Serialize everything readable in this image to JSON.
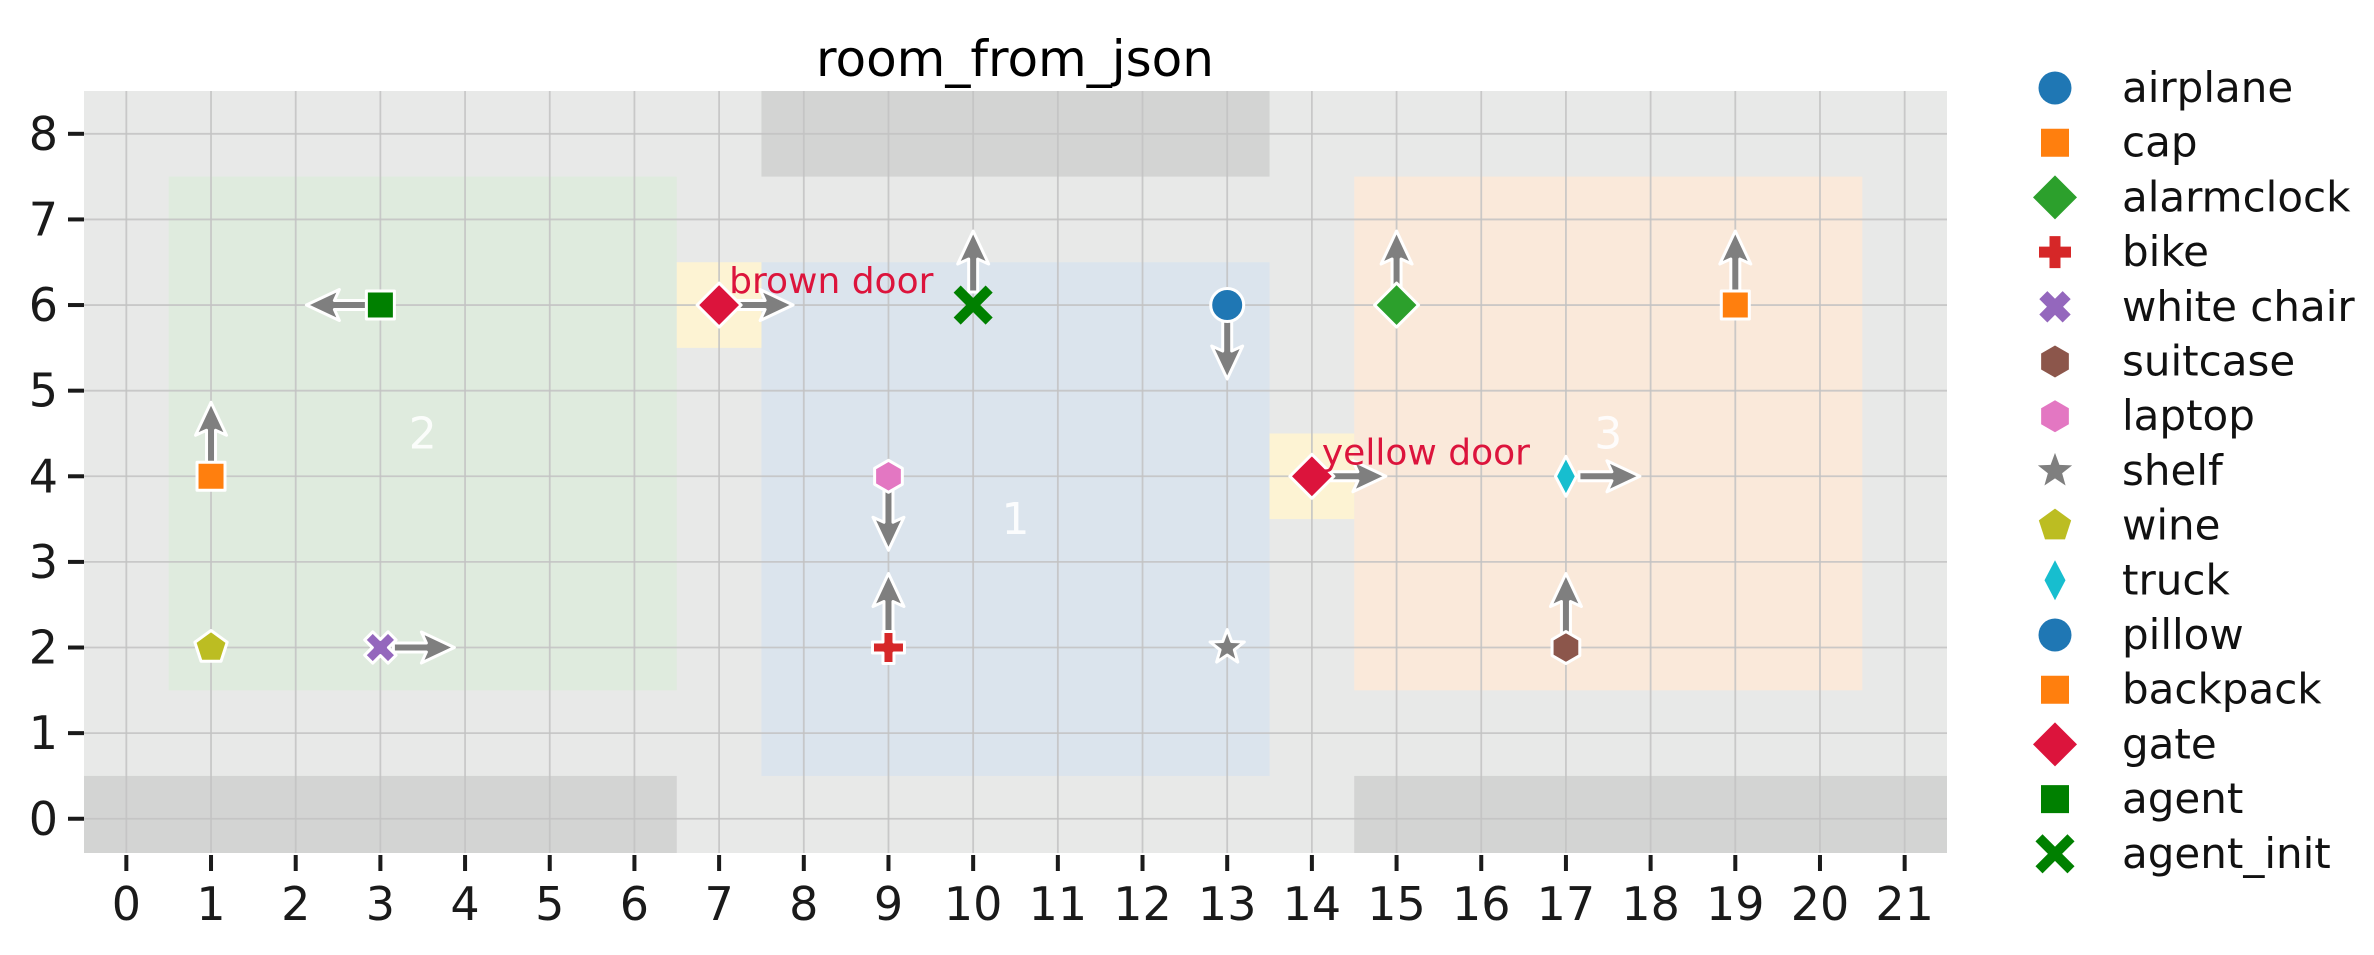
{
  "figure": {
    "title": "room_from_json"
  },
  "chart_data": {
    "type": "scatter",
    "title": "room_from_json",
    "xlim": [
      -0.5,
      21.5
    ],
    "ylim": [
      -0.4,
      8.5
    ],
    "xticks": [
      0,
      1,
      2,
      3,
      4,
      5,
      6,
      7,
      8,
      9,
      10,
      11,
      12,
      13,
      14,
      15,
      16,
      17,
      18,
      19,
      20,
      21
    ],
    "yticks": [
      0,
      1,
      2,
      3,
      4,
      5,
      6,
      7,
      8
    ],
    "grid": true,
    "legend_position": "right-outside",
    "colors": {
      "plot_bg": "#e8e9e8",
      "wall": "#d3d4d3",
      "grid": "#c3c3c3",
      "door_fill": "#fdf3d3",
      "door_text": "#dc143c",
      "room_label": "#ffffff",
      "arrow": "#7f7f7f",
      "tick": "#1a1a1a"
    },
    "rooms": [
      {
        "id": "2",
        "label": "2",
        "x": [
          0.5,
          6.5
        ],
        "y": [
          1.5,
          7.5
        ],
        "fill": "#dfebde",
        "label_x": 3.5,
        "label_y": 4.5
      },
      {
        "id": "1",
        "label": "1",
        "x": [
          7.5,
          13.5
        ],
        "y": [
          0.5,
          6.5
        ],
        "fill": "#dbe4ed",
        "label_x": 10.5,
        "label_y": 3.5
      },
      {
        "id": "3",
        "label": "3",
        "x": [
          14.5,
          20.5
        ],
        "y": [
          1.5,
          7.5
        ],
        "fill": "#fae9da",
        "label_x": 17.5,
        "label_y": 4.5
      }
    ],
    "walls": [
      {
        "x": [
          -0.5,
          6.5
        ],
        "y": [
          -0.4,
          0.5
        ]
      },
      {
        "x": [
          14.5,
          21.5
        ],
        "y": [
          -0.4,
          0.5
        ]
      },
      {
        "x": [
          7.5,
          13.5
        ],
        "y": [
          7.5,
          8.5
        ]
      }
    ],
    "doors": [
      {
        "label": "brown door",
        "x": 7,
        "y": 6,
        "rect_x": [
          6.5,
          7.5
        ],
        "rect_y": [
          5.5,
          6.5
        ]
      },
      {
        "label": "yellow door",
        "x": 14,
        "y": 4,
        "rect_x": [
          13.5,
          14.5
        ],
        "rect_y": [
          3.5,
          4.5
        ]
      }
    ],
    "objects": [
      {
        "label": "cap",
        "marker": "square",
        "color": "#ff7f0e",
        "x": 1,
        "y": 4,
        "arrow": "up"
      },
      {
        "label": "wine",
        "marker": "pentagon",
        "color": "#bcbd22",
        "x": 1,
        "y": 2,
        "arrow": null
      },
      {
        "label": "agent",
        "marker": "square",
        "color": "#008000",
        "x": 3,
        "y": 6,
        "arrow": "left"
      },
      {
        "label": "white chair",
        "marker": "x",
        "color": "#9467bd",
        "x": 3,
        "y": 2,
        "arrow": "right"
      },
      {
        "label": "gate",
        "marker": "diamond",
        "color": "#dc143c",
        "x": 7,
        "y": 6,
        "arrow": "right"
      },
      {
        "label": "laptop",
        "marker": "hexagon",
        "color": "#e377c2",
        "x": 9,
        "y": 4,
        "arrow": "down"
      },
      {
        "label": "bike",
        "marker": "plus",
        "color": "#d62728",
        "x": 9,
        "y": 2,
        "arrow": "up"
      },
      {
        "label": "agent_init",
        "marker": "x-open",
        "color": "#008000",
        "x": 10,
        "y": 6,
        "arrow": "up"
      },
      {
        "label": "airplane",
        "marker": "circle",
        "color": "#1f77b4",
        "x": 13,
        "y": 6,
        "arrow": "down"
      },
      {
        "label": "shelf",
        "marker": "star",
        "color": "#7f7f7f",
        "x": 13,
        "y": 2,
        "arrow": null
      },
      {
        "label": "gate",
        "marker": "diamond",
        "color": "#dc143c",
        "x": 14,
        "y": 4,
        "arrow": "right"
      },
      {
        "label": "alarmclock",
        "marker": "diamond",
        "color": "#2ca02c",
        "x": 15,
        "y": 6,
        "arrow": "up"
      },
      {
        "label": "truck",
        "marker": "thin-diamond",
        "color": "#17becf",
        "x": 17,
        "y": 4,
        "arrow": "right"
      },
      {
        "label": "suitcase",
        "marker": "hexagon",
        "color": "#8c564b",
        "x": 17,
        "y": 2,
        "arrow": "up"
      },
      {
        "label": "backpack",
        "marker": "square",
        "color": "#ff7f0e",
        "x": 19,
        "y": 6,
        "arrow": "up"
      }
    ],
    "legend": [
      {
        "label": "airplane",
        "marker": "circle",
        "color": "#1f77b4"
      },
      {
        "label": "cap",
        "marker": "square",
        "color": "#ff7f0e"
      },
      {
        "label": "alarmclock",
        "marker": "diamond",
        "color": "#2ca02c"
      },
      {
        "label": "bike",
        "marker": "plus",
        "color": "#d62728"
      },
      {
        "label": "white chair",
        "marker": "x",
        "color": "#9467bd"
      },
      {
        "label": "suitcase",
        "marker": "hexagon",
        "color": "#8c564b"
      },
      {
        "label": "laptop",
        "marker": "hexagon",
        "color": "#e377c2"
      },
      {
        "label": "shelf",
        "marker": "star",
        "color": "#7f7f7f"
      },
      {
        "label": "wine",
        "marker": "pentagon",
        "color": "#bcbd22"
      },
      {
        "label": "truck",
        "marker": "thin-diamond",
        "color": "#17becf"
      },
      {
        "label": "pillow",
        "marker": "circle",
        "color": "#1f77b4"
      },
      {
        "label": "backpack",
        "marker": "square",
        "color": "#ff7f0e"
      },
      {
        "label": "gate",
        "marker": "diamond",
        "color": "#dc143c"
      },
      {
        "label": "agent",
        "marker": "square",
        "color": "#008000"
      },
      {
        "label": "agent_init",
        "marker": "x-open",
        "color": "#008000"
      }
    ]
  }
}
